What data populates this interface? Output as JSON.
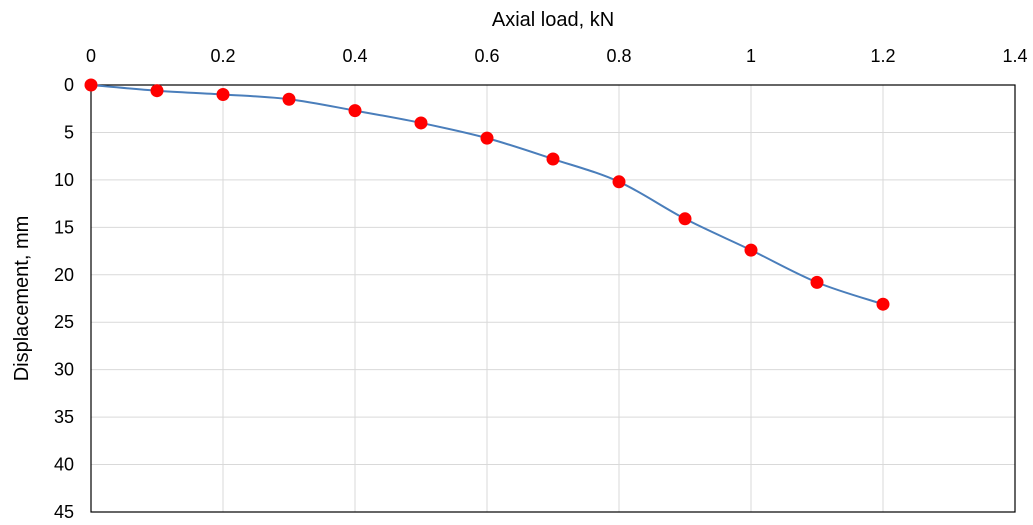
{
  "chart_data": {
    "type": "scatter",
    "title": "",
    "xlabel": "Axial load, kN",
    "ylabel": "Displacement, mm",
    "xlim": [
      0,
      1.4
    ],
    "ylim": [
      0,
      45
    ],
    "x_axis_position": "top",
    "y_axis_reversed": true,
    "grid": true,
    "x_ticks": [
      "0",
      "0.2",
      "0.4",
      "0.6",
      "0.8",
      "1",
      "1.2",
      "1.4"
    ],
    "y_ticks": [
      "0",
      "5",
      "10",
      "15",
      "20",
      "25",
      "30",
      "35",
      "40",
      "45"
    ],
    "series": [
      {
        "x": [
          0,
          0.1,
          0.2,
          0.3,
          0.4,
          0.5,
          0.6,
          0.7,
          0.8,
          0.9,
          1.0,
          1.1,
          1.2
        ],
        "y": [
          0,
          0.6,
          1.0,
          1.5,
          2.7,
          4.0,
          5.6,
          7.8,
          10.2,
          14.1,
          17.4,
          20.8,
          23.1
        ],
        "line_color": "#4a7ebb",
        "marker_color": "#ff0000",
        "smooth": true
      }
    ]
  }
}
